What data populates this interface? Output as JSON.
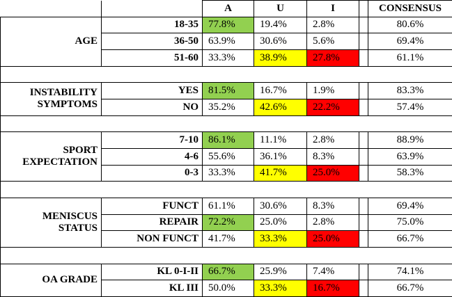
{
  "header": {
    "columns": [
      "A",
      "U",
      "I",
      "CONSENSUS"
    ]
  },
  "groups": [
    {
      "label": "AGE",
      "rows": [
        {
          "label": "18-35",
          "cells": [
            "77.8%",
            "19.4%",
            "2.8%",
            "80.6%"
          ]
        },
        {
          "label": "36-50",
          "cells": [
            "63.9%",
            "30.6%",
            "5.6%",
            "69.4%"
          ]
        },
        {
          "label": "51-60",
          "cells": [
            "33.3%",
            "38.9%",
            "27.8%",
            "61.1%"
          ]
        }
      ]
    },
    {
      "label": "INSTABILITY SYMPTOMS",
      "rows": [
        {
          "label": "YES",
          "cells": [
            "81.5%",
            "16.7%",
            "1.9%",
            "83.3%"
          ]
        },
        {
          "label": "NO",
          "cells": [
            "35.2%",
            "42.6%",
            "22.2%",
            "57.4%"
          ]
        }
      ]
    },
    {
      "label": "SPORT EXPECTATION",
      "rows": [
        {
          "label": "7-10",
          "cells": [
            "86.1%",
            "11.1%",
            "2.8%",
            "88.9%"
          ]
        },
        {
          "label": "4-6",
          "cells": [
            "55.6%",
            "36.1%",
            "8.3%",
            "63.9%"
          ]
        },
        {
          "label": "0-3",
          "cells": [
            "33.3%",
            "41.7%",
            "25.0%",
            "58.3%"
          ]
        }
      ]
    },
    {
      "label": "MENISCUS STATUS",
      "rows": [
        {
          "label": "FUNCT",
          "cells": [
            "61.1%",
            "30.6%",
            "8.3%",
            "69.4%"
          ]
        },
        {
          "label": "REPAIR",
          "cells": [
            "72.2%",
            "25.0%",
            "2.8%",
            "75.0%"
          ]
        },
        {
          "label": "NON FUNCT",
          "cells": [
            "41.7%",
            "33.3%",
            "25.0%",
            "66.7%"
          ]
        }
      ]
    },
    {
      "label": "OA GRADE",
      "rows": [
        {
          "label": "KL 0-I-II",
          "cells": [
            "66.7%",
            "25.9%",
            "7.4%",
            "74.1%"
          ]
        },
        {
          "label": "KL III",
          "cells": [
            "50.0%",
            "33.3%",
            "16.7%",
            "66.7%"
          ]
        }
      ]
    }
  ]
}
